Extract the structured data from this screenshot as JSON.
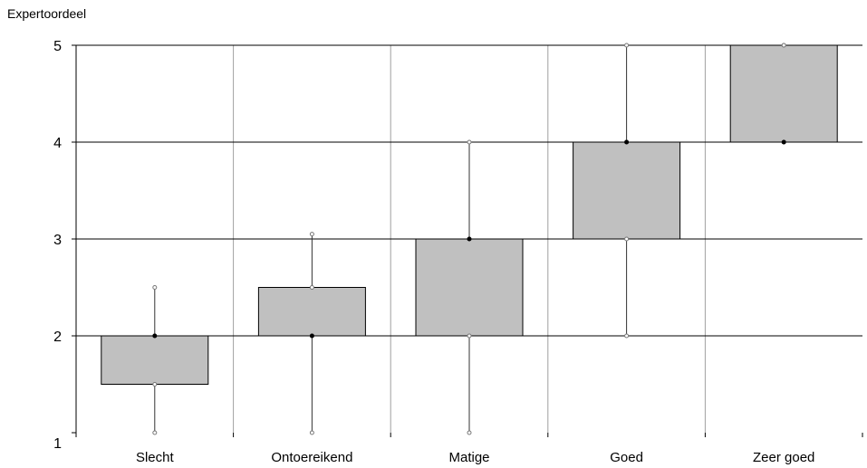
{
  "chart_data": {
    "type": "box",
    "ylabel": "Expertoordeel",
    "xlabel": "",
    "title": "",
    "ylim": [
      1,
      5
    ],
    "yticks": [
      1,
      2,
      3,
      4,
      5
    ],
    "categories": [
      "Slecht",
      "Ontoereikend",
      "Matige",
      "Goed",
      "Zeer goed"
    ],
    "boxes": [
      {
        "category": "Slecht",
        "whisker_low": 1,
        "q1": 1.5,
        "median": 2,
        "q3": 2,
        "whisker_high": 2.5
      },
      {
        "category": "Ontoereikend",
        "whisker_low": 1,
        "q1": 2,
        "median": 2,
        "q3": 2.5,
        "whisker_high": 3.05
      },
      {
        "category": "Matige",
        "whisker_low": 1,
        "q1": 2,
        "median": 3,
        "q3": 3,
        "whisker_high": 4
      },
      {
        "category": "Goed",
        "whisker_low": 2,
        "q1": 3,
        "median": 4,
        "q3": 4,
        "whisker_high": 5
      },
      {
        "category": "Zeer goed",
        "whisker_low": 4,
        "q1": 4,
        "median": 4,
        "q3": 5,
        "whisker_high": 5
      }
    ],
    "grid": true,
    "colors": {
      "box_fill": "#c0c0c0",
      "box_stroke": "#000000",
      "grid_h": "#000000",
      "grid_v": "#a0a0a0"
    }
  }
}
